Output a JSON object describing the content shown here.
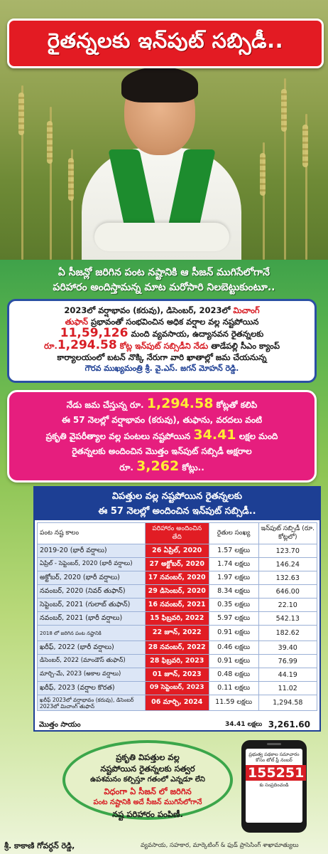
{
  "headline": "రైతన్నలకు ఇన్‌పుట్ సబ్సిడీ..",
  "tagline": [
    "ఏ సీజన్లో జరిగిన పంట నష్టానికి ఆ సీజన్ ముగిసేలోగానే",
    "పరిహారం అందిస్తామన్న మాట మరోసారి నిలబెట్టుకుంటూ.."
  ],
  "box1": {
    "l1a": "2023లో వర్షాభావం (కరువు), డిసెంబర్, 2023లో ",
    "l1b": "మిచాంగ్",
    "l2a": "తుఫాన్",
    "l2b": " ప్రభావంతో సంభవించిన అధిక వర్షాల వల్ల నష్టపోయిన",
    "l3a": "11,59,126",
    "l3b": " మంది వ్యవసాయ, ఉద్యానవన రైతన్నలకు",
    "l4a": "రూ.",
    "l4b": "1,294.58",
    "l4c": " కోట్ల ఇన్‌పుట్ సబ్సిడీని నేడు",
    "l4d": " తాడేపల్లి సీఎం క్యాంప్",
    "l5": "కార్యాలయంలో బటన్ నొక్కి నేరుగా వారి ఖాతాల్లో జమ చేయనున్న",
    "l6": "గౌరవ ముఖ్యమంత్రి శ్రీ. వై.ఎస్. జగన్ మోహన్ రెడ్డి."
  },
  "box2": {
    "l1a": "నేడు జమ చేస్తున్న రూ. ",
    "l1b": "1,294.58",
    "l1c": " కోట్లతో కలిపి",
    "l2": "ఈ 57 నెలల్లో వర్షాభావం (కరువు), తుఫాను, వరదలు వంటి",
    "l3a": "ప్రకృతి వైపరీత్యాల వల్ల పంటలు నష్టపోయిన ",
    "l3b": "34.41",
    "l3c": " లక్షల మంది",
    "l4": "రైతన్నలకు అందించిన మొత్తం ఇన్‌పుట్ సబ్సిడీ అక్షరాల",
    "l5a": "రూ. ",
    "l5b": "3,262",
    "l5c": " కోట్లు.."
  },
  "table": {
    "title_l1": "విపత్తుల వల్ల నష్టపోయిన రైతన్నలకు",
    "title_l2": "ఈ 57 నెలల్లో అందించిన ఇన్‌పుట్ సబ్సిడీ..",
    "headers": [
      "పంట నష్ట కాలం",
      "పరిహారం అందించిన తేది",
      "రైతుల సంఖ్య",
      "ఇన్‌పుట్ సబ్సిడీ (రూ. కోట్లలో)"
    ],
    "rows": [
      [
        "2019-20 (భారీ వర్షాలు)",
        "26 ఏప్రిల్, 2020",
        "1.57 లక్షలు",
        "123.70"
      ],
      [
        "ఏప్రిల్ - సెప్టెంబర్, 2020 (భారీ వర్షాలు)",
        "27 అక్టోబర్, 2020",
        "1.74 లక్షలు",
        "146.24"
      ],
      [
        "అక్టోబర్, 2020 (భారీ వర్షాలు)",
        "17 నవంబర్, 2020",
        "1.97 లక్షలు",
        "132.63"
      ],
      [
        "నవంబర్, 2020 (నివర్ తుఫాన్)",
        "29 డిసెంబర్, 2020",
        "8.34 లక్షలు",
        "646.00"
      ],
      [
        "సెప్టెంబర్, 2021 (గులాబ్ తుఫాన్)",
        "16 నవంబర్, 2021",
        "0.35 లక్షలు",
        "22.10"
      ],
      [
        "నవంబర్, 2021 (భారీ వర్షాలు)",
        "15 ఫిబ్రవరి, 2022",
        "5.97 లక్షలు",
        "542.13"
      ],
      [
        "2018 లో జరిగిన పంట నష్టానికి",
        "22 జూన్, 2022",
        "0.91 లక్షలు",
        "182.62"
      ],
      [
        "ఖరీఫ్, 2022 (భారీ వర్షాలు)",
        "28 నవంబర్, 2022",
        "0.46 లక్షలు",
        "39.40"
      ],
      [
        "డిసెంబర్, 2022 (మాండౌస్ తుఫాన్)",
        "28 ఫిబ్రవరి, 2023",
        "0.91 లక్షలు",
        "76.99"
      ],
      [
        "మార్చి-మే, 2023 (అకాల వర్షాలు)",
        "01 జూన్, 2023",
        "0.48 లక్షలు",
        "44.19"
      ],
      [
        "ఖరీఫ్, 2023 (వర్షాల కొరత)",
        "09 సెప్టెంబర్, 2023",
        "0.11 లక్షలు",
        "11.02"
      ],
      [
        "ఖరీఫ్ 2023లో వర్షాభావం (కరువు), డిసెంబర్ 2023లో మిచాంగ్ తుఫాన్",
        "06 మార్చి, 2024",
        "11.59 లక్షలు",
        "1,294.58"
      ]
    ],
    "total_label": "మొత్తం సాయం",
    "total_count": "34.41 లక్షలు",
    "total_amount": "3,261.60"
  },
  "oval": [
    "ప్రకృతి విపత్తుల వల్ల",
    "నష్టపోయిన రైతన్నలకు సత్వర",
    "ఉపశమనం కల్పిస్తూ గతంలో ఎన్నడూ లేని",
    "విధంగా ఏ సీజన్ లో జరిగిన",
    "పంట నష్టానికి అదే సీజన్ ముగిసేలోగానే",
    "నష్ట పరిహారం పంపిణీ."
  ],
  "phone": {
    "text": "ప్రభుత్వ పథకాల సమాచారం కోసం టోల్ ఫ్రీ నంబర్",
    "number": "155251",
    "sub": "కు సంప్రదించండి"
  },
  "footer": {
    "name": "శ్రీ. కాకాణి గోవర్ధన్ రెడ్డి,",
    "role": "వ్యవసాయ, సహకార, మార్కెటింగ్ & ఫుడ్ ప్రాసెసింగ్ శాఖామాత్యులు"
  }
}
